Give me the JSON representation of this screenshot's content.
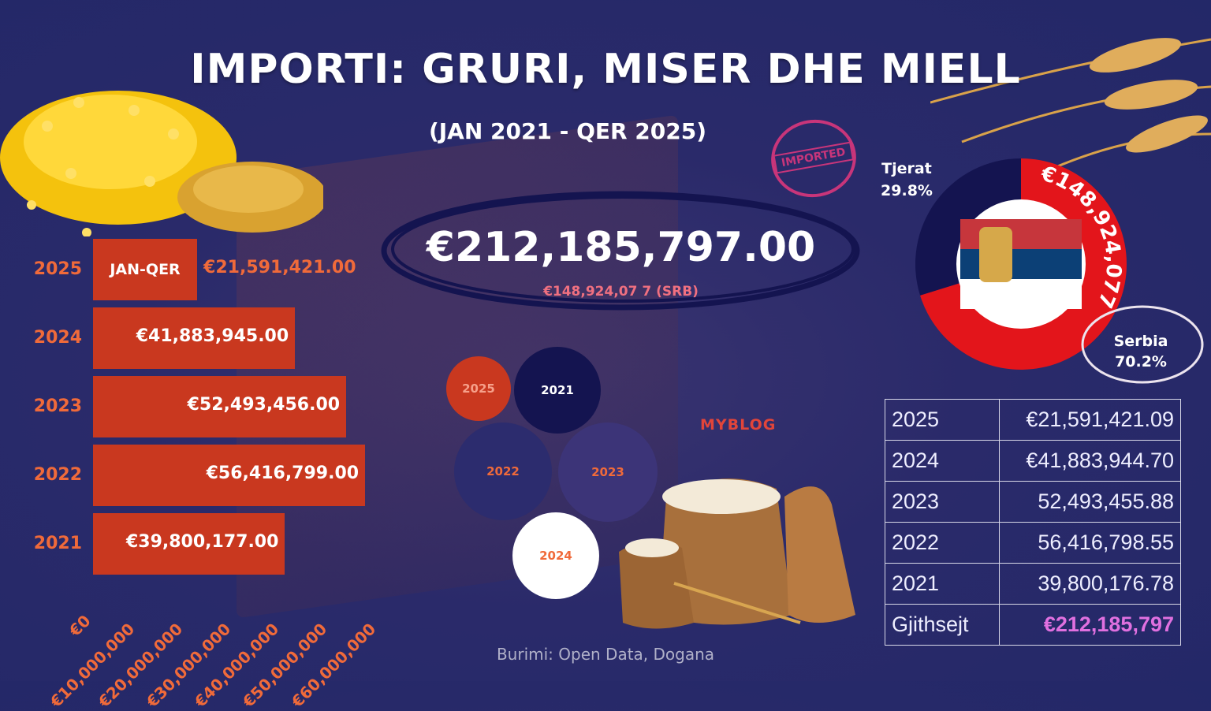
{
  "title": "IMPORTI: GRURI, MISER DHE MIELL",
  "subtitle": "(JAN 2021 - QER 2025)",
  "stamp_text": "IMPORTED",
  "total_amount": "€212,185,797.00",
  "serbia_note": "€148,924,07 7 (SRB)",
  "brand": "MYBLOG",
  "source": "Burimi: Open Data, Dogana",
  "colors": {
    "bar": "#c9381f",
    "accent_orange": "#f06a3a",
    "serbia_red": "#e3151b",
    "navy": "#141450",
    "pink_total": "#e070e0"
  },
  "chart_data": [
    {
      "type": "bar",
      "orientation": "horizontal",
      "categories": [
        "2025",
        "2024",
        "2023",
        "2022",
        "2021"
      ],
      "values": [
        21591421,
        41883945,
        52493456,
        56416799,
        39800177
      ],
      "value_labels": [
        "€21,591,421.00",
        "€41,883,945.00",
        "€52,493,456.00",
        "€56,416,799.00",
        "€39,800,177.00"
      ],
      "bar_note_2025": "JAN-QER",
      "xlim": [
        0,
        60000000
      ],
      "x_ticks": [
        "€0",
        "€10,000,000",
        "€20,000,000",
        "€30,000,000",
        "€40,000,000",
        "€50,000,000",
        "€60,000,000"
      ],
      "x_tick_values": [
        0,
        10000000,
        20000000,
        30000000,
        40000000,
        50000000,
        60000000
      ]
    },
    {
      "type": "pie",
      "style": "donut",
      "slices": [
        {
          "label": "Serbia",
          "percent_label": "70.2%",
          "value": 70.2,
          "color": "#e3151b"
        },
        {
          "label": "Tjerat",
          "percent_label": "29.8%",
          "value": 29.8,
          "color": "#141450"
        }
      ],
      "ring_label": "€148,924,077"
    },
    {
      "type": "table",
      "rows": [
        {
          "year": "2025",
          "amount": "€21,591,421.09"
        },
        {
          "year": "2024",
          "amount": "€41,883,944.70"
        },
        {
          "year": "2023",
          "amount": "52,493,455.88"
        },
        {
          "year": "2022",
          "amount": "56,416,798.55"
        },
        {
          "year": "2021",
          "amount": "39,800,176.78"
        },
        {
          "year": "Gjithsejt",
          "amount": "€212,185,797"
        }
      ]
    }
  ],
  "bubbles": [
    {
      "label": "2025",
      "fill": "#c9381f",
      "text_color": "#f6a08a"
    },
    {
      "label": "2021",
      "fill": "#141450",
      "text_color": "#ffffff"
    },
    {
      "label": "2022",
      "fill": "#2c2c6e",
      "text_color": "#f06a3a"
    },
    {
      "label": "2023",
      "fill": "#3c3478",
      "text_color": "#f06a3a"
    },
    {
      "label": "2024",
      "fill": "#ffffff",
      "text_color": "#f06a3a"
    }
  ]
}
